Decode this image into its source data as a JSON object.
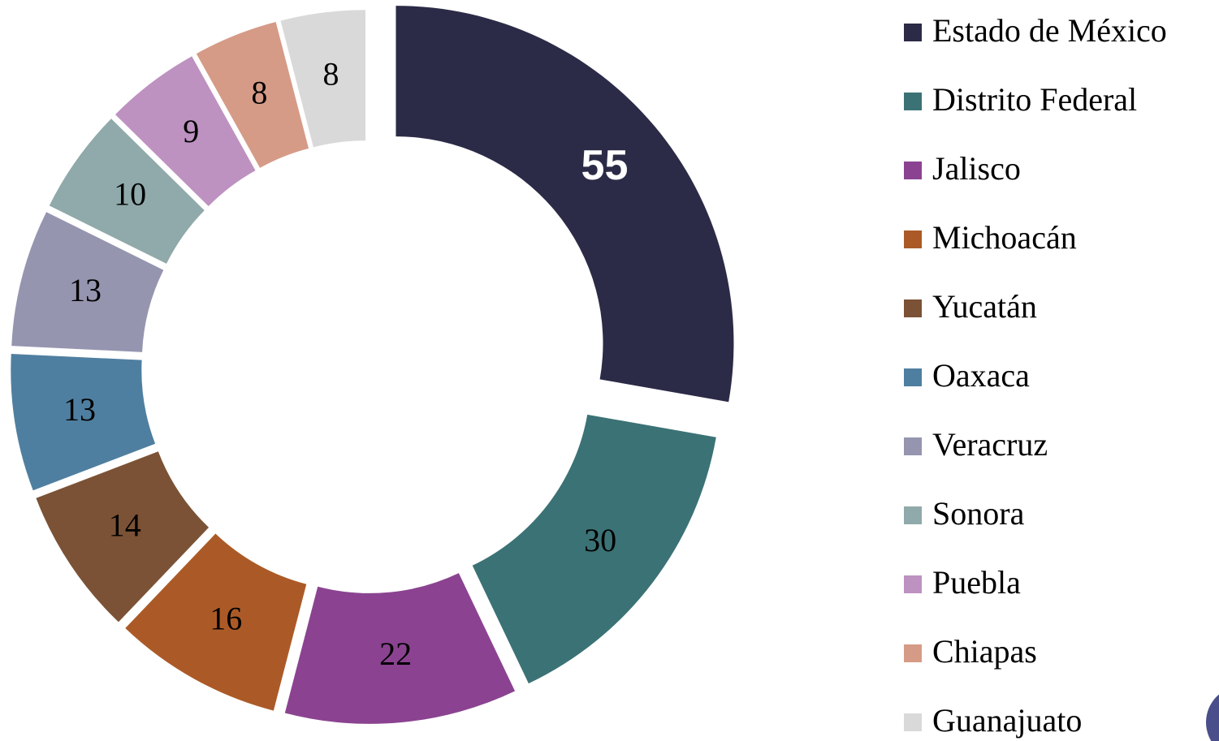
{
  "chart_data": {
    "type": "donut",
    "categories": [
      "Estado de México",
      "Distrito Federal",
      "Jalisco",
      "Michoacán",
      "Yucatán",
      "Oaxaca",
      "Veracruz",
      "Sonora",
      "Puebla",
      "Chiapas",
      "Guanajuato"
    ],
    "values": [
      55,
      30,
      22,
      16,
      14,
      13,
      13,
      10,
      9,
      8,
      8
    ],
    "colors": [
      "#2b2b47",
      "#3b7275",
      "#8b4391",
      "#ab5a27",
      "#7b5235",
      "#4f7fa0",
      "#9595b0",
      "#90a9aa",
      "#bd92c0",
      "#d59b87",
      "#d9d9d9"
    ],
    "legend": "right"
  }
}
